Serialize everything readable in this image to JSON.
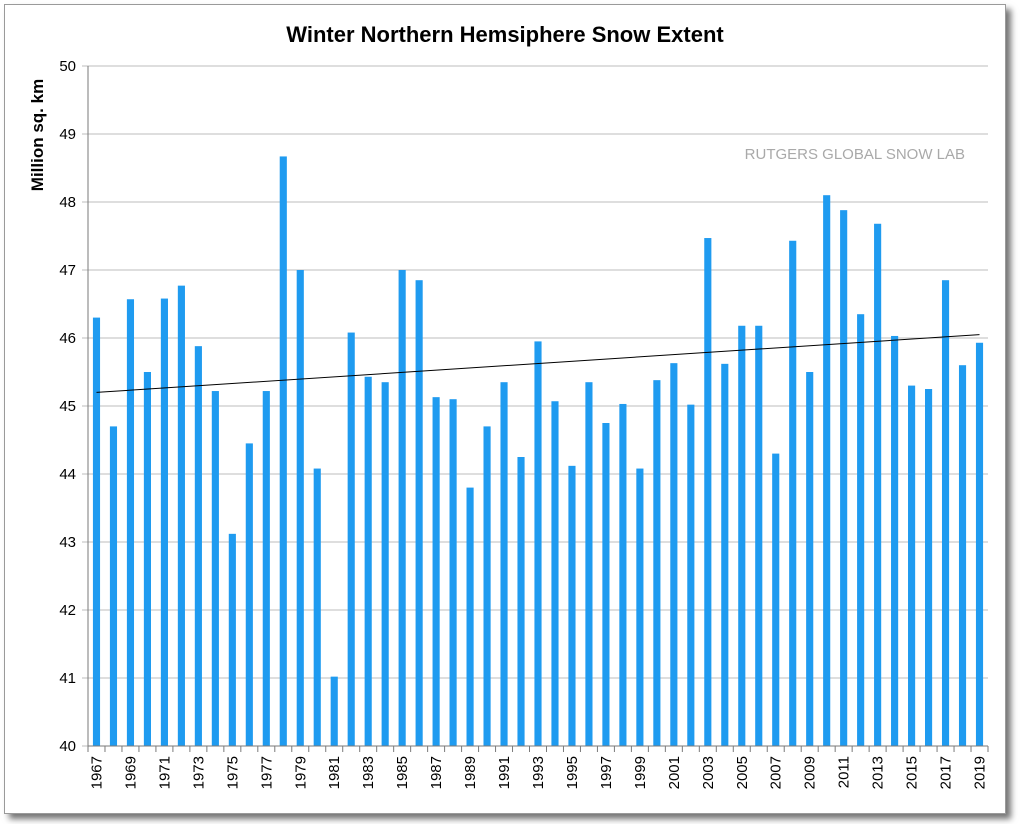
{
  "chart_data": {
    "type": "bar",
    "title": "Winter Northern Hemsiphere Snow Extent",
    "xlabel": "",
    "ylabel": "Million sq. km",
    "watermark": "RUTGERS GLOBAL SNOW LAB",
    "ylim": [
      40,
      50
    ],
    "yticks": [
      40,
      41,
      42,
      43,
      44,
      45,
      46,
      47,
      48,
      49,
      50
    ],
    "grid": true,
    "bar_color": "#1f9bf0",
    "categories": [
      1967,
      1968,
      1969,
      1970,
      1971,
      1972,
      1973,
      1974,
      1975,
      1976,
      1977,
      1978,
      1979,
      1980,
      1981,
      1982,
      1983,
      1984,
      1985,
      1986,
      1987,
      1988,
      1989,
      1990,
      1991,
      1992,
      1993,
      1994,
      1995,
      1996,
      1997,
      1998,
      1999,
      2000,
      2001,
      2002,
      2003,
      2004,
      2005,
      2006,
      2007,
      2008,
      2009,
      2010,
      2011,
      2012,
      2013,
      2014,
      2015,
      2016,
      2017,
      2018,
      2019
    ],
    "xtick_labels": [
      1967,
      1969,
      1971,
      1973,
      1975,
      1977,
      1979,
      1981,
      1983,
      1985,
      1987,
      1989,
      1991,
      1993,
      1995,
      1997,
      1999,
      2001,
      2003,
      2005,
      2007,
      2009,
      2011,
      2013,
      2015,
      2017,
      2019
    ],
    "values": [
      46.3,
      44.7,
      46.57,
      45.5,
      46.58,
      46.77,
      45.88,
      45.22,
      43.12,
      44.45,
      45.22,
      48.67,
      47.0,
      44.08,
      41.02,
      46.08,
      45.43,
      45.35,
      47.0,
      46.85,
      45.13,
      45.1,
      43.8,
      44.7,
      45.35,
      44.25,
      45.95,
      45.07,
      44.12,
      45.35,
      44.75,
      45.03,
      44.08,
      45.38,
      45.63,
      45.02,
      47.47,
      45.62,
      46.18,
      46.18,
      44.3,
      47.43,
      45.5,
      48.1,
      47.88,
      46.35,
      47.68,
      46.03,
      45.3,
      45.25,
      46.85,
      45.6,
      45.93
    ],
    "trendline": {
      "start": 45.2,
      "end": 46.05
    }
  }
}
